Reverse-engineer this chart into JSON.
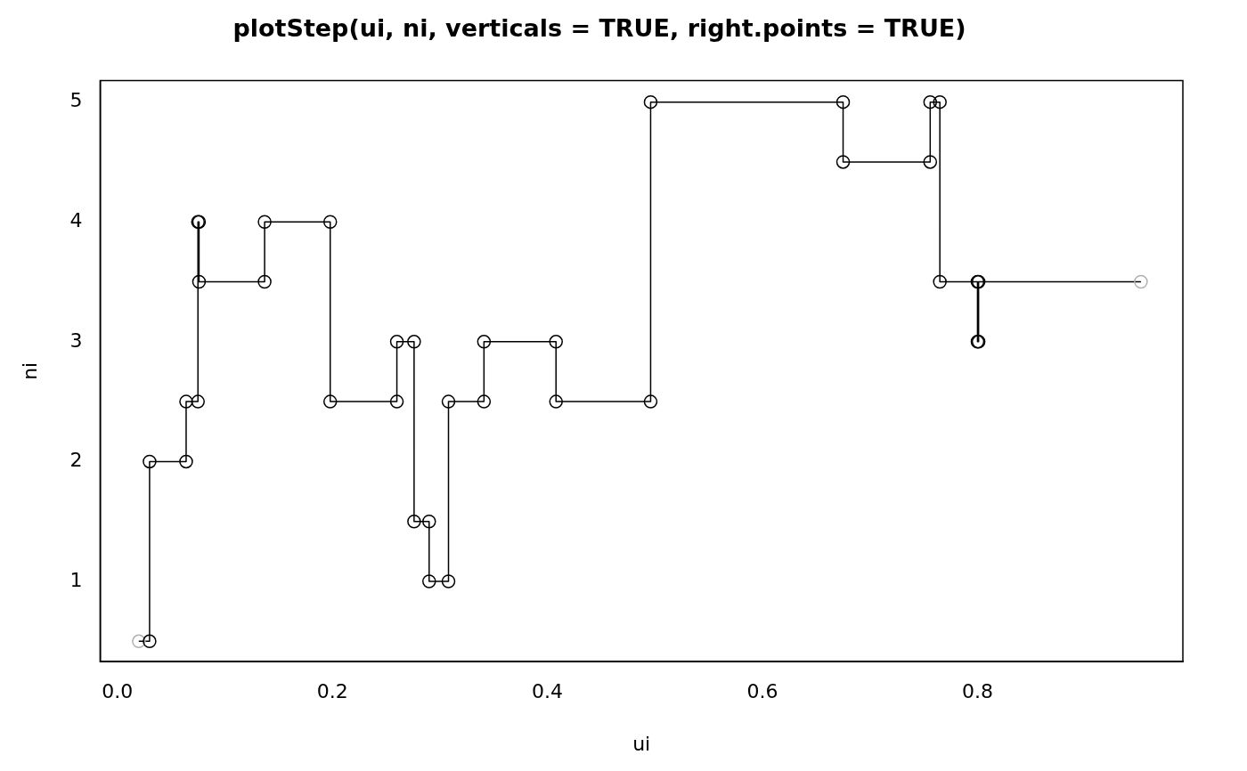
{
  "chart_data": {
    "type": "line",
    "title": "plotStep(ui, ni, verticals = TRUE, right.points = TRUE)",
    "xlabel": "ui",
    "ylabel": "ni",
    "xlim": [
      -0.016,
      0.991
    ],
    "xticks": [
      {
        "value": 0,
        "label": "0.0"
      },
      0.2,
      0.4,
      0.6,
      0.8
    ],
    "ylim": [
      0.33,
      5.18
    ],
    "yticks": [
      1,
      2,
      3,
      4,
      5
    ],
    "grid": false,
    "legend": false,
    "marker": "circle",
    "line_style": "solid",
    "series": [
      {
        "color": "#000000",
        "colors": [
          "#b0b0b0",
          "#000000",
          "#000000",
          "#000000",
          "#000000",
          "#000000",
          "#000000",
          "#000000",
          "#000000",
          "#000000",
          "#000000",
          "#000000",
          "#000000",
          "#000000",
          "#000000",
          "#000000",
          "#000000",
          "#000000",
          "#000000",
          "#000000",
          "#000000",
          "#000000",
          "#000000",
          "#000000",
          "#000000",
          "#000000",
          "#000000",
          "#000000",
          "#000000",
          "#000000",
          "#000000",
          "#000000",
          "#000000",
          "#000000",
          "#000000",
          "#000000",
          "#000000",
          "#b0b0b0"
        ],
        "x": [
          0.02,
          0.03,
          0.03,
          0.064,
          0.064,
          0.075,
          0.075,
          0.076,
          0.076,
          0.137,
          0.137,
          0.198,
          0.198,
          0.26,
          0.26,
          0.276,
          0.276,
          0.29,
          0.29,
          0.308,
          0.308,
          0.341,
          0.341,
          0.408,
          0.408,
          0.496,
          0.496,
          0.675,
          0.675,
          0.756,
          0.756,
          0.765,
          0.765,
          0.8,
          0.8,
          0.801,
          0.801,
          0.952
        ],
        "values": [
          0.5,
          0.5,
          2,
          2,
          2.5,
          2.5,
          4,
          4,
          3.5,
          3.5,
          4,
          4,
          2.5,
          2.5,
          3,
          3,
          1.5,
          1.5,
          1,
          1,
          2.5,
          2.5,
          3,
          3,
          2.5,
          2.5,
          5,
          5,
          4.5,
          4.5,
          5,
          5,
          3.5,
          3.5,
          3,
          3,
          3.5,
          3.5
        ]
      }
    ]
  }
}
